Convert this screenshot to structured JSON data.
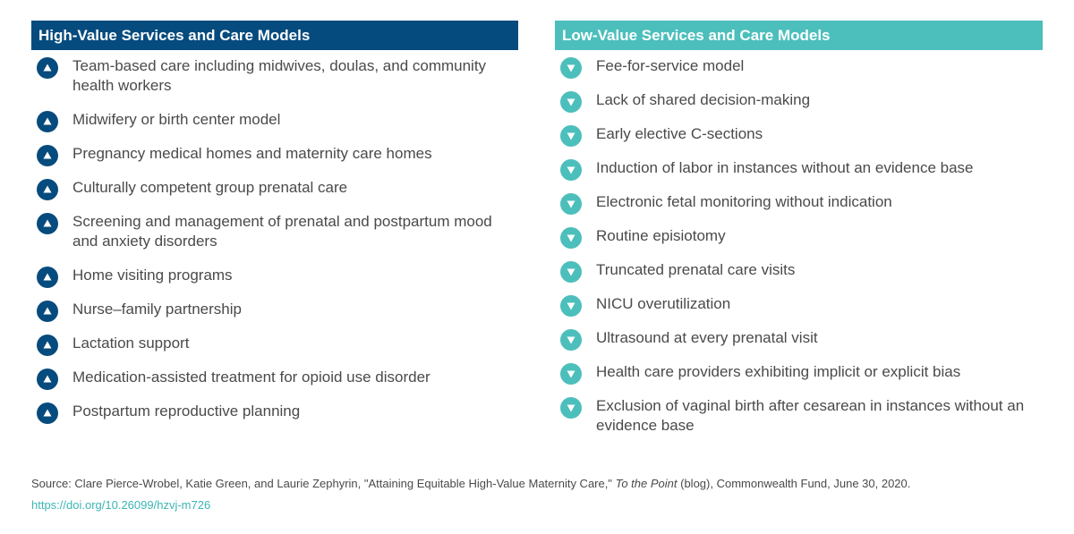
{
  "high": {
    "title": "High-Value Services and Care Models",
    "icon": "up-triangle-icon",
    "color": "#064b7e",
    "items": [
      "Team-based care including midwives, doulas, and community health workers",
      "Midwifery or birth center model",
      "Pregnancy medical homes and maternity care homes",
      "Culturally competent group prenatal care",
      "Screening and management of prenatal and postpartum mood and anxiety disorders",
      "Home visiting programs",
      "Nurse–family partnership",
      "Lactation support",
      "Medication-assisted treatment for opioid use disorder",
      "Postpartum reproductive planning"
    ]
  },
  "low": {
    "title": "Low-Value Services and Care Models",
    "icon": "down-triangle-icon",
    "color": "#4cbfbc",
    "items": [
      "Fee-for-service model",
      "Lack of shared decision-making",
      "Early elective C-sections",
      "Induction of labor in instances without an evidence base",
      "Electronic fetal monitoring without indication",
      "Routine episiotomy",
      "Truncated prenatal care visits",
      "NICU overutilization",
      "Ultrasound at every prenatal visit",
      "Health care providers exhibiting implicit or explicit bias",
      "Exclusion of vaginal birth after cesarean in instances without an evidence base"
    ]
  },
  "source": {
    "prefix": "Source: Clare Pierce-Wrobel, Katie Green, and Laurie Zephyrin, \"Attaining Equitable High-Value Maternity Care,\"",
    "publication": "To the Point",
    "suffix": "(blog), Commonwealth Fund, June 30, 2020.",
    "link": "https://doi.org/10.26099/hzvj-m726"
  }
}
